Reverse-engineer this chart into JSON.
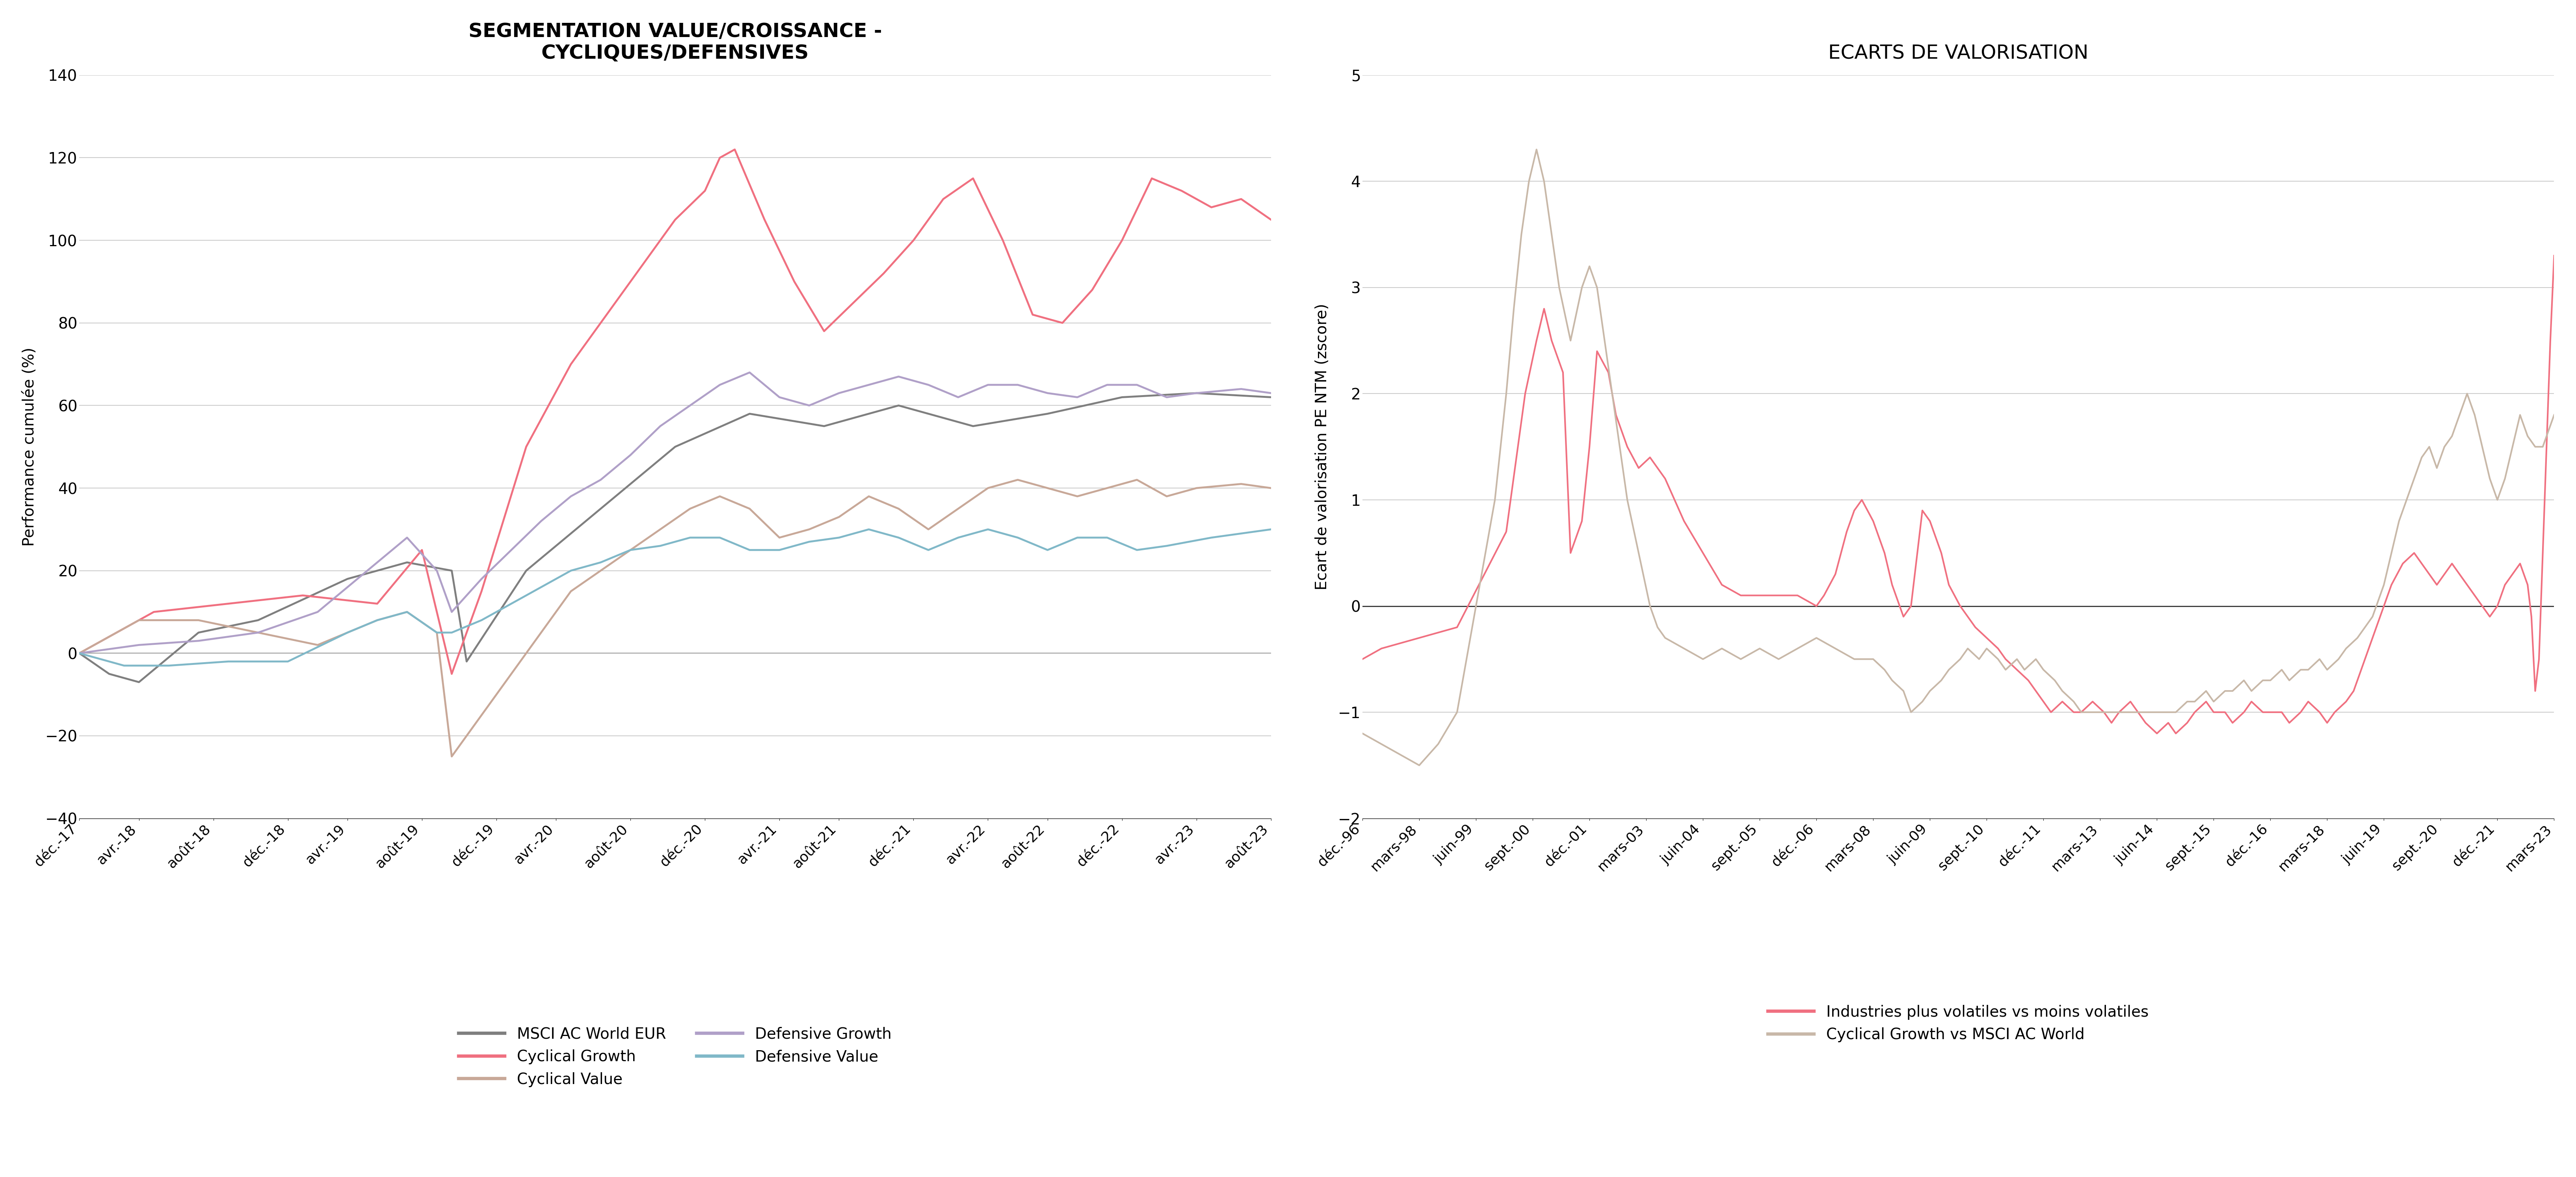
{
  "chart1": {
    "title": "SEGMENTATION VALUE/CROISSANCE -\nCYCLIQUES/DEFENSIVES",
    "ylabel": "Performance cumulée (%)",
    "ylim": [
      -40,
      140
    ],
    "yticks": [
      -40,
      -20,
      0,
      20,
      40,
      60,
      80,
      100,
      120,
      140
    ],
    "colors": {
      "msci": "#7f7f7f",
      "cyc_growth": "#f07080",
      "cyc_value": "#c8a898",
      "def_growth": "#b0a0c8",
      "def_value": "#80b8c8"
    },
    "xtick_labels": [
      "déc.-17",
      "avr.-18",
      "août-18",
      "déc.-18",
      "avr.-19",
      "août-19",
      "déc.-19",
      "avr.-20",
      "août-20",
      "déc.-20",
      "avr.-21",
      "août-21",
      "déc.-21",
      "avr.-22",
      "août-22",
      "déc.-22",
      "avr.-23",
      "août-23"
    ],
    "legend_labels": [
      "MSCI AC World EUR",
      "Cyclical Growth",
      "Cyclical Value",
      "Defensive Growth",
      "Defensive Value"
    ]
  },
  "chart2": {
    "title": "ECARTS DE VALORISATION",
    "ylabel": "Ecart de valorisation PE NTM (zscore)",
    "ylim": [
      -2,
      5
    ],
    "yticks": [
      -2,
      -1,
      0,
      1,
      2,
      3,
      4,
      5
    ],
    "colors": {
      "vol": "#f07080",
      "cyc_msci": "#c8b8a8"
    },
    "xtick_labels": [
      "déc.-96",
      "mars-98",
      "juin-99",
      "sept.-00",
      "déc.-01",
      "mars-03",
      "juin-04",
      "sept.-05",
      "déc.-06",
      "mars-08",
      "juin-09",
      "sept.-10",
      "déc.-11",
      "mars-13",
      "juin-14",
      "sept.-15",
      "déc.-16",
      "mars-18",
      "juin-19",
      "sept.-20",
      "déc.-21",
      "mars-23"
    ],
    "legend_labels": [
      "Industries plus volatiles vs moins volatiles",
      "Cyclical Growth vs MSCI AC World"
    ]
  }
}
